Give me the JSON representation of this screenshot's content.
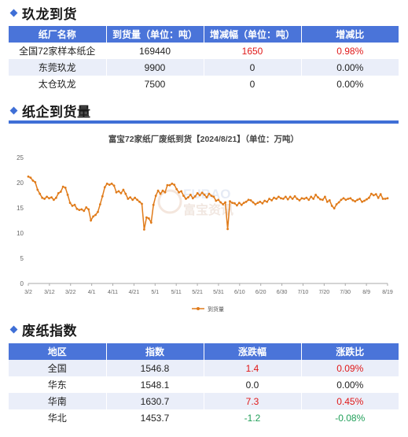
{
  "sections": {
    "s1": "玖龙到货",
    "s2": "纸企到货量",
    "s3": "废纸指数"
  },
  "table1": {
    "headers": [
      "纸厂名称",
      "到货量（单位：吨）",
      "增减幅（单位：吨）",
      "增减比"
    ],
    "rows": [
      [
        "全国72家样本纸企",
        "169440",
        "1650",
        "0.98%"
      ],
      [
        "东莞玖龙",
        "9900",
        "0",
        "0.00%"
      ],
      [
        "太仓玖龙",
        "7500",
        "0",
        "0.00%"
      ]
    ]
  },
  "table2": {
    "headers": [
      "地区",
      "指数",
      "涨跌幅",
      "涨跌比"
    ],
    "rows": [
      [
        "全国",
        "1546.8",
        "1.4",
        "0.09%"
      ],
      [
        "华东",
        "1548.1",
        "0.0",
        "0.00%"
      ],
      [
        "华南",
        "1630.7",
        "7.3",
        "0.45%"
      ],
      [
        "华北",
        "1453.7",
        "-1.2",
        "-0.08%"
      ]
    ]
  },
  "watermark": {
    "text": "富宝资讯",
    "logo": "FUBAO"
  },
  "colors": {
    "header": "#4a74d9",
    "accent": "#3f6fd6",
    "line": "#e07b1a",
    "up": "#e01818",
    "down": "#22a05a"
  },
  "chart_data": {
    "type": "line",
    "title": "富宝72家纸厂废纸到货【2024/8/21】（单位：万吨）",
    "ylim": [
      0,
      25
    ],
    "yticks": [
      0,
      5,
      10,
      15,
      20,
      25
    ],
    "xticks": [
      "3/2",
      "3/12",
      "3/22",
      "4/1",
      "4/11",
      "4/21",
      "5/1",
      "5/11",
      "5/21",
      "5/31",
      "6/10",
      "6/20",
      "6/30",
      "7/10",
      "7/20",
      "7/30",
      "8/9",
      "8/19"
    ],
    "legend": "到货量",
    "legend_position": "bottom",
    "grid": false,
    "series": [
      {
        "name": "到货量",
        "values": [
          21.2,
          21.0,
          20.4,
          20.1,
          18.6,
          17.8,
          17.0,
          16.8,
          17.2,
          16.9,
          17.1,
          16.6,
          17.0,
          17.9,
          18.2,
          19.2,
          19.0,
          17.6,
          16.0,
          15.4,
          15.6,
          14.8,
          14.6,
          14.7,
          14.4,
          15.1,
          14.7,
          12.5,
          13.3,
          13.6,
          14.2,
          15.7,
          17.3,
          19.1,
          19.8,
          19.6,
          19.8,
          19.4,
          18.1,
          18.3,
          17.9,
          18.6,
          17.8,
          16.8,
          17.1,
          16.6,
          17.0,
          16.6,
          16.2,
          15.8,
          10.7,
          13.1,
          12.9,
          12.1,
          15.6,
          17.4,
          18.4,
          17.8,
          18.4,
          18.1,
          19.5,
          19.5,
          19.8,
          19.6,
          18.7,
          18.1,
          18.3,
          17.4,
          16.8,
          17.1,
          17.6,
          16.9,
          17.3,
          17.9,
          17.5,
          18.0,
          17.6,
          17.1,
          17.8,
          17.4,
          17.2,
          16.4,
          16.6,
          16.1,
          15.7,
          16.1,
          10.8,
          16.3,
          16.0,
          15.9,
          15.5,
          16.0,
          15.6,
          16.0,
          16.2,
          16.6,
          16.5,
          16.1,
          15.7,
          16.0,
          16.2,
          15.9,
          16.4,
          16.2,
          16.8,
          16.5,
          17.0,
          16.8,
          17.2,
          16.9,
          16.8,
          17.2,
          16.7,
          17.2,
          16.8,
          17.3,
          16.8,
          16.5,
          16.9,
          16.8,
          17.0,
          16.6,
          17.2,
          16.8,
          17.6,
          17.1,
          16.7,
          16.6,
          17.2,
          16.2,
          16.5,
          15.4,
          14.9,
          15.7,
          16.1,
          16.6,
          16.9,
          16.6,
          16.8,
          16.9,
          16.5,
          16.3,
          16.6,
          16.8,
          16.2,
          16.4,
          16.7,
          17.0,
          17.8,
          17.5,
          17.7,
          17.0,
          17.7,
          16.8,
          16.8,
          16.9
        ]
      }
    ]
  }
}
